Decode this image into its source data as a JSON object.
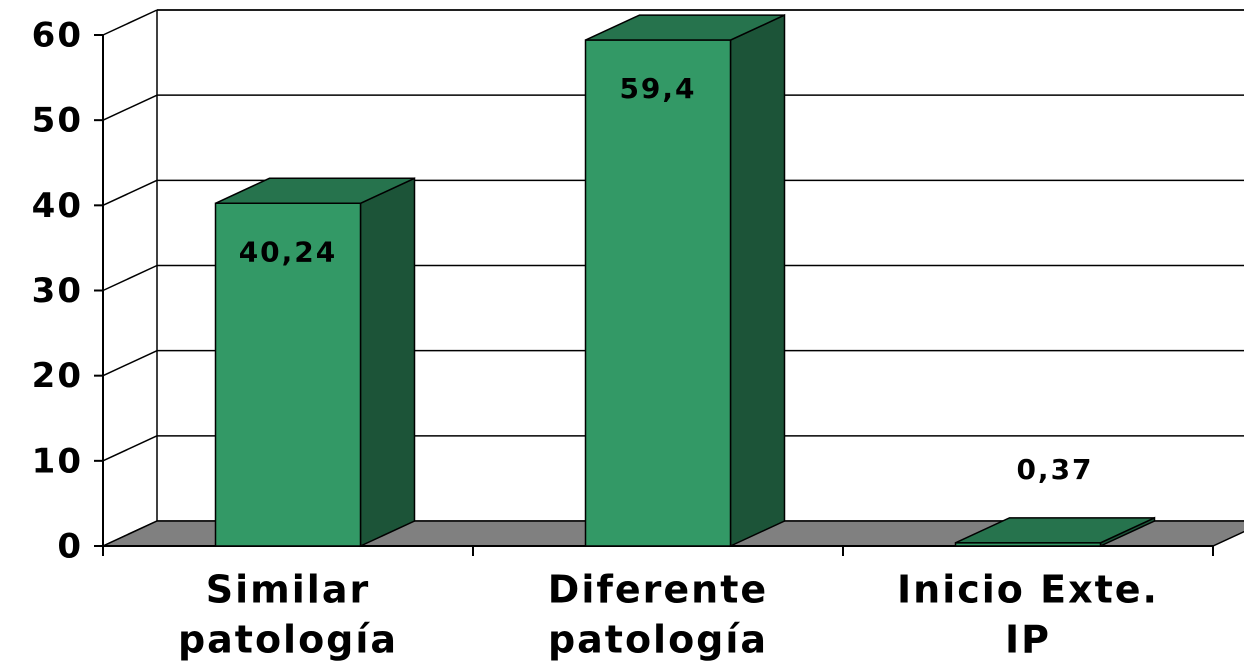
{
  "chart_data": {
    "type": "bar3d",
    "categories": [
      [
        "Similar",
        "patología"
      ],
      [
        "Diferente",
        "patología"
      ],
      [
        "Inicio Exte.",
        "IP"
      ]
    ],
    "values": [
      40.24,
      59.4,
      0.37
    ],
    "value_labels": [
      "40,24",
      "59,4",
      "0,37"
    ],
    "color": "#339966",
    "ylim": [
      0,
      60
    ],
    "yticks": [
      0,
      10,
      20,
      30,
      40,
      50,
      60
    ],
    "grid": true
  }
}
